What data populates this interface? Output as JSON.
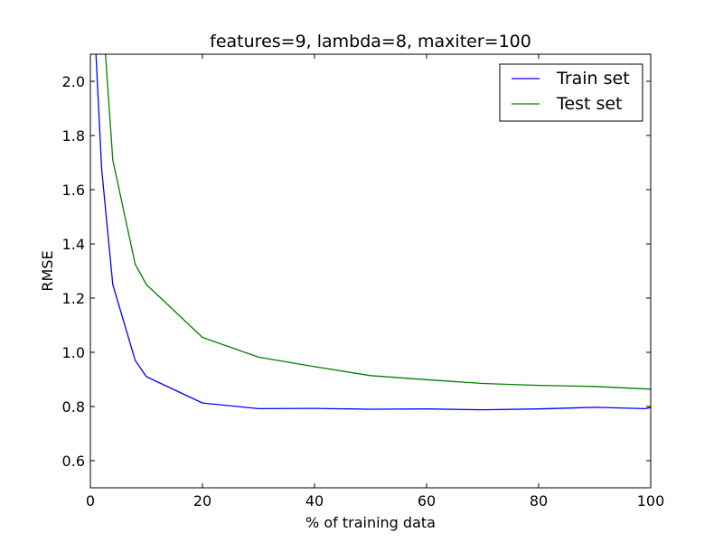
{
  "chart_data": {
    "type": "line",
    "title": "features=9, lambda=8, maxiter=100",
    "xlabel": "% of training data",
    "ylabel": "RMSE",
    "xlim": [
      0,
      100
    ],
    "ylim": [
      0.5,
      2.1
    ],
    "x_ticks": [
      "0",
      "20",
      "40",
      "60",
      "80",
      "100"
    ],
    "x_tick_values": [
      0,
      20,
      40,
      60,
      80,
      100
    ],
    "y_ticks": [
      "0.6",
      "0.8",
      "1.0",
      "1.2",
      "1.4",
      "1.6",
      "1.8",
      "2.0"
    ],
    "y_tick_values": [
      0.6,
      0.8,
      1.0,
      1.2,
      1.4,
      1.6,
      1.8,
      2.0
    ],
    "grid": false,
    "legend_position": "top-right",
    "series": [
      {
        "name": "Train set",
        "color": "#0000ff",
        "x": [
          1,
          2,
          4,
          8,
          10,
          20,
          30,
          40,
          50,
          60,
          70,
          80,
          90,
          99,
          100
        ],
        "y": [
          2.1,
          1.68,
          1.25,
          0.97,
          0.91,
          0.813,
          0.792,
          0.793,
          0.79,
          0.791,
          0.788,
          0.791,
          0.797,
          0.792,
          0.796
        ]
      },
      {
        "name": "Test set",
        "color": "#008000",
        "x": [
          2.7,
          4,
          8,
          10,
          20,
          30,
          40,
          50,
          60,
          70,
          80,
          90,
          100
        ],
        "y": [
          2.1,
          1.71,
          1.325,
          1.25,
          1.055,
          0.982,
          0.947,
          0.914,
          0.899,
          0.885,
          0.878,
          0.874,
          0.864
        ]
      }
    ]
  }
}
